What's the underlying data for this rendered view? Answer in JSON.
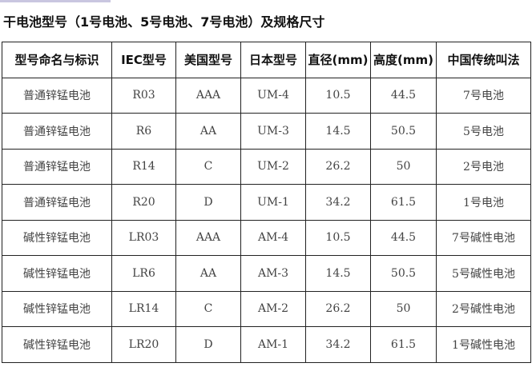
{
  "title": "干电池型号（1号电池、5号电池、7号电池）及规格尺寸",
  "headers": [
    "型号命名与标识",
    "IEC型号",
    "美国型号",
    "日本型号",
    "直径(mm)",
    "高度(mm)",
    "中国传统叫法"
  ],
  "rows": [
    [
      "普通锌锰电池",
      "R03",
      "AAA",
      "UM-4",
      "10.5",
      "44.5",
      "7号电池"
    ],
    [
      "普通锌锰电池",
      "R6",
      "AA",
      "UM-3",
      "14.5",
      "50.5",
      "5号电池"
    ],
    [
      "普通锌锰电池",
      "R14",
      "C",
      "UM-2",
      "26.2",
      "50",
      "2号电池"
    ],
    [
      "普通锌锰电池",
      "R20",
      "D",
      "UM-1",
      "34.2",
      "61.5",
      "1号电池"
    ],
    [
      "碱性锌锰电池",
      "LR03",
      "AAA",
      "AM-4",
      "10.5",
      "44.5",
      "7号碱性电池"
    ],
    [
      "碱性锌锰电池",
      "LR6",
      "AA",
      "AM-3",
      "14.5",
      "50.5",
      "5号碱性电池"
    ],
    [
      "碱性锌锰电池",
      "LR14",
      "C",
      "AM-2",
      "26.2",
      "50",
      "2号碱性电池"
    ],
    [
      "碱性锌锰电池",
      "LR20",
      "D",
      "AM-1",
      "34.2",
      "61.5",
      "1号碱性电池"
    ]
  ]
}
